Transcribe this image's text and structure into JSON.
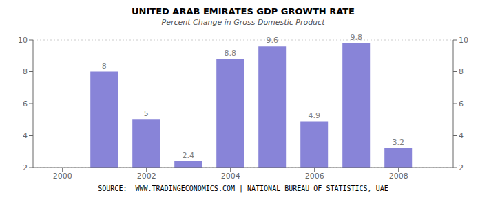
{
  "chart_data": {
    "type": "bar",
    "title": "UNITED ARAB EMIRATES GDP GROWTH RATE",
    "subtitle": "Percent Change in Gross Domestic Product",
    "annotations": [
      "SOURCE:  WWW.TRADINGECONOMICS.COM | NATIONAL BUREAU OF STATISTICS, UAE"
    ],
    "x": [
      2001,
      2002,
      2003,
      2004,
      2005,
      2006,
      2007,
      2008
    ],
    "values": [
      8.0,
      5.0,
      2.4,
      8.8,
      9.6,
      4.9,
      9.8,
      3.2
    ],
    "xlim": [
      1999.3,
      2009.3
    ],
    "xticks": [
      2000,
      2002,
      2004,
      2006,
      2008
    ],
    "ylim": [
      2,
      10
    ],
    "yticks": [
      2,
      4,
      6,
      8,
      10
    ],
    "grid": true,
    "data_labels": true
  }
}
